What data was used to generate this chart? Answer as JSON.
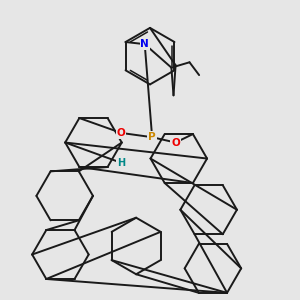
{
  "background_color": "#e6e6e6",
  "atom_colors": {
    "N": "#0000ee",
    "P": "#cc8800",
    "O": "#ee0000",
    "H": "#008888",
    "C": "#1a1a1a"
  },
  "bond_color": "#1a1a1a",
  "bond_width": 1.4,
  "dbo": 0.018,
  "figsize": [
    3.0,
    3.0
  ],
  "dpi": 100
}
